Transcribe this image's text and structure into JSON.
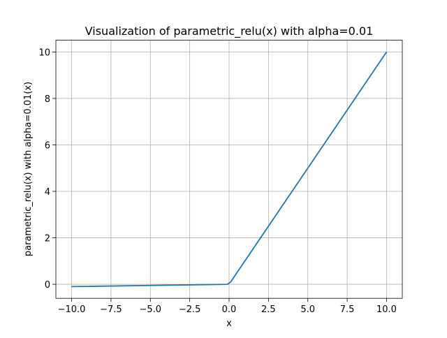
{
  "chart_data": {
    "type": "line",
    "title": "Visualization of parametric_relu(x) with alpha=0.01",
    "xlabel": "x",
    "ylabel": "parametric_relu(x) with alpha=0.01(x)",
    "x": [
      -10,
      -0.1,
      0.1,
      10
    ],
    "series": [
      {
        "name": "parametric_relu",
        "color": "#1f77b4",
        "values": [
          -0.1,
          -0.001,
          0.1,
          10
        ]
      }
    ],
    "xlim": [
      -11,
      11
    ],
    "ylim": [
      -0.605,
      10.505
    ],
    "xticks": [
      {
        "value": -10,
        "label": "−10.0"
      },
      {
        "value": -7.5,
        "label": "−7.5"
      },
      {
        "value": -5,
        "label": "−5.0"
      },
      {
        "value": -2.5,
        "label": "−2.5"
      },
      {
        "value": 0,
        "label": "0.0"
      },
      2.5,
      {
        "value": 5,
        "label": "5.0"
      },
      7.5,
      {
        "value": 10,
        "label": "10.0"
      }
    ],
    "yticks": [
      0,
      2,
      4,
      6,
      8,
      10
    ],
    "grid": true
  }
}
